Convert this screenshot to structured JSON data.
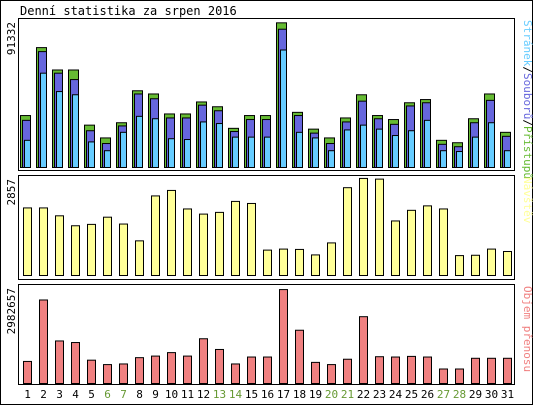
{
  "chart_data": [
    {
      "type": "bar",
      "title": "Denní statistika za srpen 2016",
      "ymax_label": "91332",
      "legend": [
        {
          "text": "Přístupů",
          "color": "#66bb33"
        },
        {
          "text": "Souborů",
          "color": "#6666dd"
        },
        {
          "text": "Stránek",
          "color": "#66ccff"
        }
      ],
      "legend_separator": "/",
      "categories": [
        "1",
        "2",
        "3",
        "4",
        "5",
        "6",
        "7",
        "8",
        "9",
        "10",
        "11",
        "12",
        "13",
        "14",
        "15",
        "16",
        "17",
        "18",
        "19",
        "20",
        "21",
        "22",
        "23",
        "24",
        "25",
        "26",
        "27",
        "28",
        "29",
        "30",
        "31"
      ],
      "weekend_days": [
        "6",
        "7",
        "13",
        "14",
        "20",
        "21",
        "27",
        "28"
      ],
      "ylim": [
        0,
        91332
      ],
      "series": [
        {
          "name": "Přístupů",
          "color": "#66bb33",
          "values": [
            32500,
            75000,
            61000,
            61000,
            26500,
            18500,
            28000,
            48000,
            46000,
            33500,
            33500,
            41000,
            38000,
            24500,
            32500,
            32500,
            90500,
            34500,
            24000,
            18500,
            31000,
            45500,
            32500,
            30000,
            40500,
            42500,
            17000,
            15500,
            30500,
            46000,
            22000
          ]
        },
        {
          "name": "Souborů",
          "color": "#6666dd",
          "values": [
            29500,
            72500,
            59000,
            55000,
            23000,
            15000,
            26000,
            46000,
            43000,
            31000,
            31000,
            39000,
            35500,
            22500,
            30000,
            30000,
            86500,
            32500,
            21500,
            15000,
            28500,
            41500,
            30500,
            27000,
            38500,
            40500,
            14500,
            13000,
            28000,
            42000,
            19500
          ]
        },
        {
          "name": "Stránek",
          "color": "#66ccff",
          "values": [
            17000,
            59000,
            47500,
            45500,
            16000,
            10500,
            22000,
            32000,
            30500,
            18000,
            17500,
            28500,
            27500,
            19000,
            19000,
            19000,
            73500,
            22000,
            18500,
            10500,
            23500,
            26500,
            24000,
            20000,
            23000,
            29500,
            10500,
            10000,
            19000,
            28000,
            10500
          ]
        }
      ]
    },
    {
      "type": "bar",
      "ymax_label": "2857",
      "legend": [
        {
          "text": "Návštěv",
          "color": "#ffff99"
        }
      ],
      "categories": [
        "1",
        "2",
        "3",
        "4",
        "5",
        "6",
        "7",
        "8",
        "9",
        "10",
        "11",
        "12",
        "13",
        "14",
        "15",
        "16",
        "17",
        "18",
        "19",
        "20",
        "21",
        "22",
        "23",
        "24",
        "25",
        "26",
        "27",
        "28",
        "29",
        "30",
        "31"
      ],
      "ylim": [
        0,
        2857
      ],
      "series": [
        {
          "name": "Návštěv",
          "color": "#ffff99",
          "values": [
            1970,
            1970,
            1740,
            1450,
            1490,
            1700,
            1500,
            1010,
            2320,
            2480,
            1940,
            1790,
            1840,
            2160,
            2100,
            740,
            770,
            760,
            600,
            950,
            2560,
            2830,
            2810,
            1590,
            1900,
            2030,
            1940,
            580,
            590,
            770,
            700
          ]
        }
      ]
    },
    {
      "type": "bar",
      "ymax_label": "2982657",
      "legend": [
        {
          "text": "Objem přenosu",
          "color": "#f08080"
        }
      ],
      "categories": [
        "1",
        "2",
        "3",
        "4",
        "5",
        "6",
        "7",
        "8",
        "9",
        "10",
        "11",
        "12",
        "13",
        "14",
        "15",
        "16",
        "17",
        "18",
        "19",
        "20",
        "21",
        "22",
        "23",
        "24",
        "25",
        "26",
        "27",
        "28",
        "29",
        "30",
        "31"
      ],
      "ylim": [
        0,
        2982657
      ],
      "series": [
        {
          "name": "Objem přenosu",
          "color": "#f08080",
          "values": [
            700000,
            2650000,
            1350000,
            1300000,
            740000,
            600000,
            620000,
            820000,
            870000,
            980000,
            870000,
            1420000,
            1080000,
            620000,
            840000,
            840000,
            2980000,
            1690000,
            670000,
            600000,
            770000,
            2120000,
            850000,
            840000,
            860000,
            840000,
            460000,
            460000,
            800000,
            800000,
            800000
          ]
        }
      ]
    }
  ],
  "colors": {
    "axis": "#000000",
    "weekday_tick": "#000000",
    "weekend_tick": "#669933",
    "bar_outline": "#000000",
    "background": "#ffffff"
  }
}
